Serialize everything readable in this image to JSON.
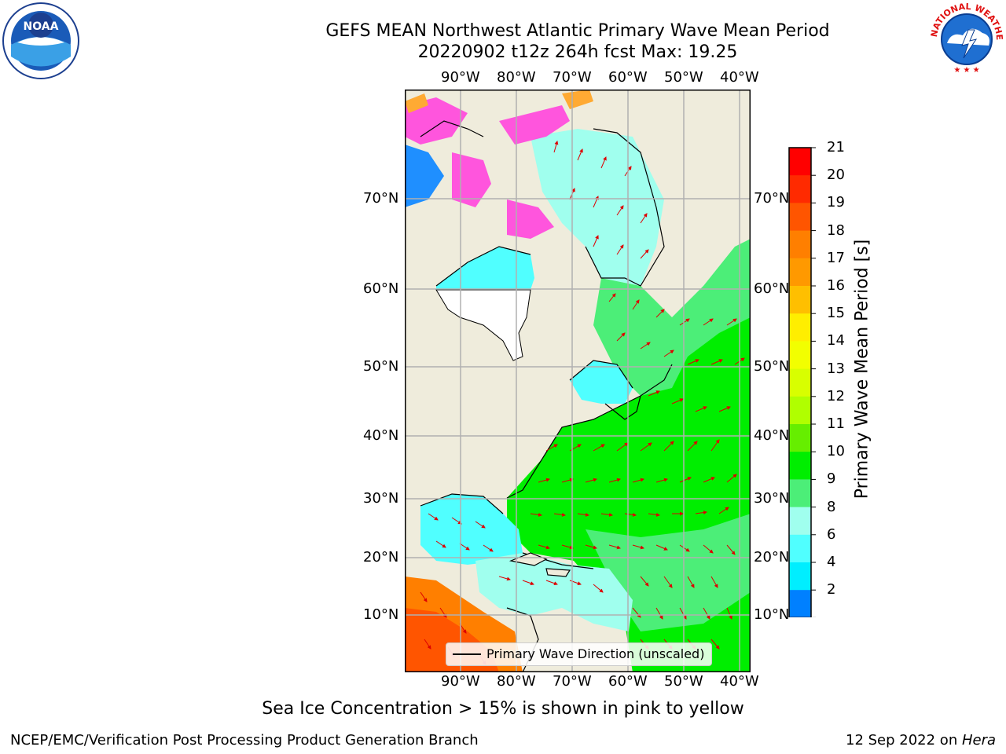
{
  "title": {
    "line1": "GEFS MEAN Northwest Atlantic Primary Wave Mean Period",
    "line2": "20220902 t12z 264h fcst   Max: 19.25"
  },
  "map": {
    "lon_ticks": [
      "90°W",
      "80°W",
      "70°W",
      "60°W",
      "50°W",
      "40°W"
    ],
    "lat_ticks": [
      "70°N",
      "60°N",
      "50°N",
      "40°N",
      "30°N",
      "20°N",
      "10°N"
    ],
    "legend_label": "Primary Wave Direction (unscaled)"
  },
  "colorbar": {
    "title": "Primary Wave Mean Period [s]",
    "ticks": [
      "21",
      "20",
      "19",
      "18",
      "17",
      "16",
      "15",
      "14",
      "13",
      "12",
      "11",
      "10",
      "9",
      "8",
      "6",
      "4",
      "2"
    ],
    "colors": [
      "#ff0000",
      "#ff2a00",
      "#ff5500",
      "#ff7f00",
      "#ff9900",
      "#ffbf00",
      "#ffee00",
      "#f2ff00",
      "#d8ff00",
      "#b0ff00",
      "#66ee00",
      "#00ee00",
      "#4cee78",
      "#a0ffee",
      "#50ffff",
      "#00eeff",
      "#0080ff"
    ],
    "extend_color": "#0000ee"
  },
  "colors": {
    "land": "#efecdc",
    "ocean_green": "#00ee00",
    "ocean_lightgreen": "#4cee78",
    "ocean_cyan": "#50ffff",
    "ocean_paleblue": "#a0ffee",
    "ocean_orange": "#ff7f00",
    "arrow": "#dd0000",
    "grid": "#b0b0b0"
  },
  "caption": "Sea Ice Concentration > 15% is shown in pink to yellow",
  "footer": {
    "left": "NCEP/EMC/Verification Post Processing Product Generation Branch",
    "date": "12 Sep 2022 on ",
    "host": "Hera"
  },
  "logos": {
    "noaa_text": "NOAA",
    "nws_text": "NATIONAL WEATHER SERVICE"
  }
}
